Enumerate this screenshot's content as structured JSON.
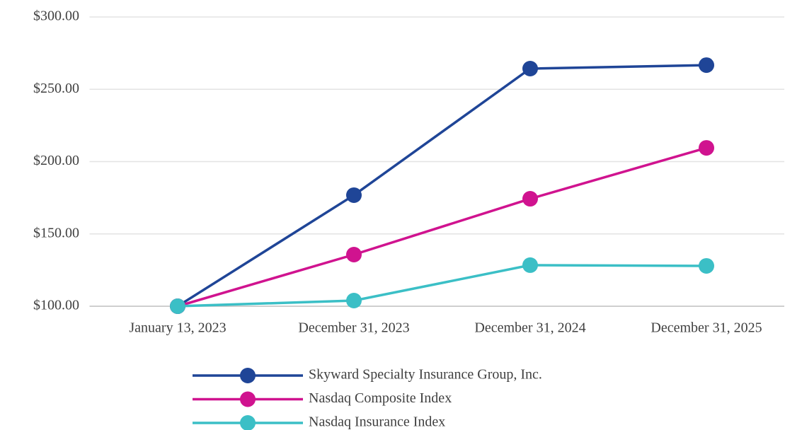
{
  "chart_data": {
    "type": "line",
    "categories": [
      "January 13, 2023",
      "December 31, 2023",
      "December 31, 2024",
      "December 31, 2025"
    ],
    "series": [
      {
        "name": "Skyward Specialty Insurance Group, Inc.",
        "color": "#1f4597",
        "values": [
          100,
          176.8,
          264.3,
          266.7
        ]
      },
      {
        "name": "Nasdaq Composite Index",
        "color": "#d0138f",
        "values": [
          100,
          135.7,
          174.3,
          209.5
        ]
      },
      {
        "name": "Nasdaq Insurance Index",
        "color": "#3bbfc6",
        "values": [
          100,
          103.9,
          128.4,
          127.9
        ]
      }
    ],
    "ylim": [
      100,
      300
    ],
    "yticks": [
      {
        "value": 100,
        "label": "$100.00"
      },
      {
        "value": 150,
        "label": "$150.00"
      },
      {
        "value": 200,
        "label": "$200.00"
      },
      {
        "value": 250,
        "label": "$250.00"
      },
      {
        "value": 300,
        "label": "$300.00"
      }
    ],
    "grid": true,
    "legend": "bottom"
  }
}
